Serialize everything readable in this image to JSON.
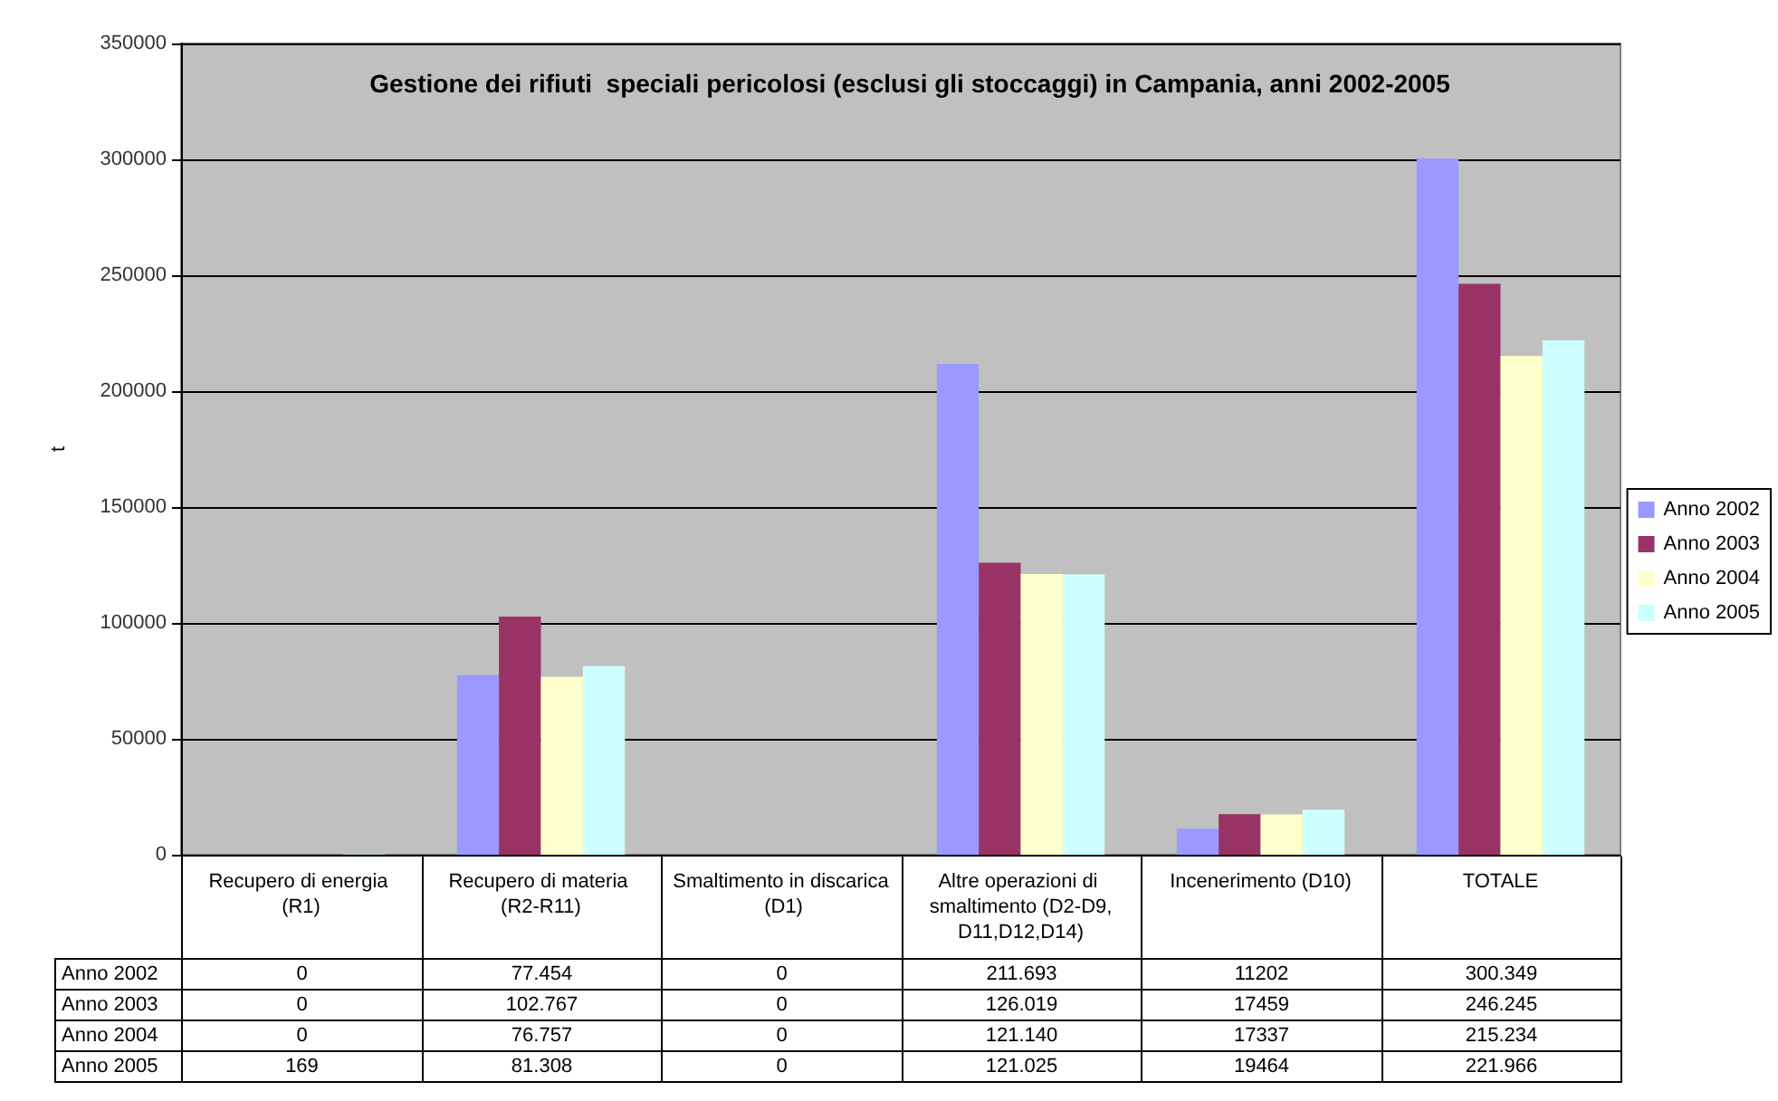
{
  "chart_data": {
    "type": "bar",
    "title": "Gestione dei rifiuti  speciali pericolosi (esclusi gli stoccaggi) in Campania, anni 2002-2005",
    "ylabel": "t",
    "categories": [
      "Recupero di energia (R1)",
      "Recupero di materia (R2-R11)",
      "Smaltimento in discarica (D1)",
      "Altre operazioni di smaltimento (D2-D9,D11,D12,D14)",
      "Incenerimento (D10)",
      "TOTALE"
    ],
    "series": [
      {
        "name": "Anno 2002",
        "color": "#9999ff",
        "values": [
          0,
          77454,
          0,
          211693,
          11202,
          300349
        ],
        "value_labels": [
          "0",
          "77.454",
          "0",
          "211.693",
          "11202",
          "300.349"
        ]
      },
      {
        "name": "Anno 2003",
        "color": "#993366",
        "values": [
          0,
          102767,
          0,
          126019,
          17459,
          246245
        ],
        "value_labels": [
          "0",
          "102.767",
          "0",
          "126.019",
          "17459",
          "246.245"
        ]
      },
      {
        "name": "Anno 2004",
        "color": "#ffffcc",
        "values": [
          0,
          76757,
          0,
          121140,
          17337,
          215234
        ],
        "value_labels": [
          "0",
          "76.757",
          "0",
          "121.140",
          "17337",
          "215.234"
        ]
      },
      {
        "name": "Anno 2005",
        "color": "#ccffff",
        "values": [
          169,
          81308,
          0,
          121025,
          19464,
          221966
        ],
        "value_labels": [
          "169",
          "81.308",
          "0",
          "121.025",
          "19464",
          "221.966"
        ]
      }
    ],
    "ylim": [
      0,
      350000
    ],
    "yticks": [
      0,
      50000,
      100000,
      150000,
      200000,
      250000,
      300000,
      350000
    ],
    "grid": "y",
    "legend": "right"
  }
}
